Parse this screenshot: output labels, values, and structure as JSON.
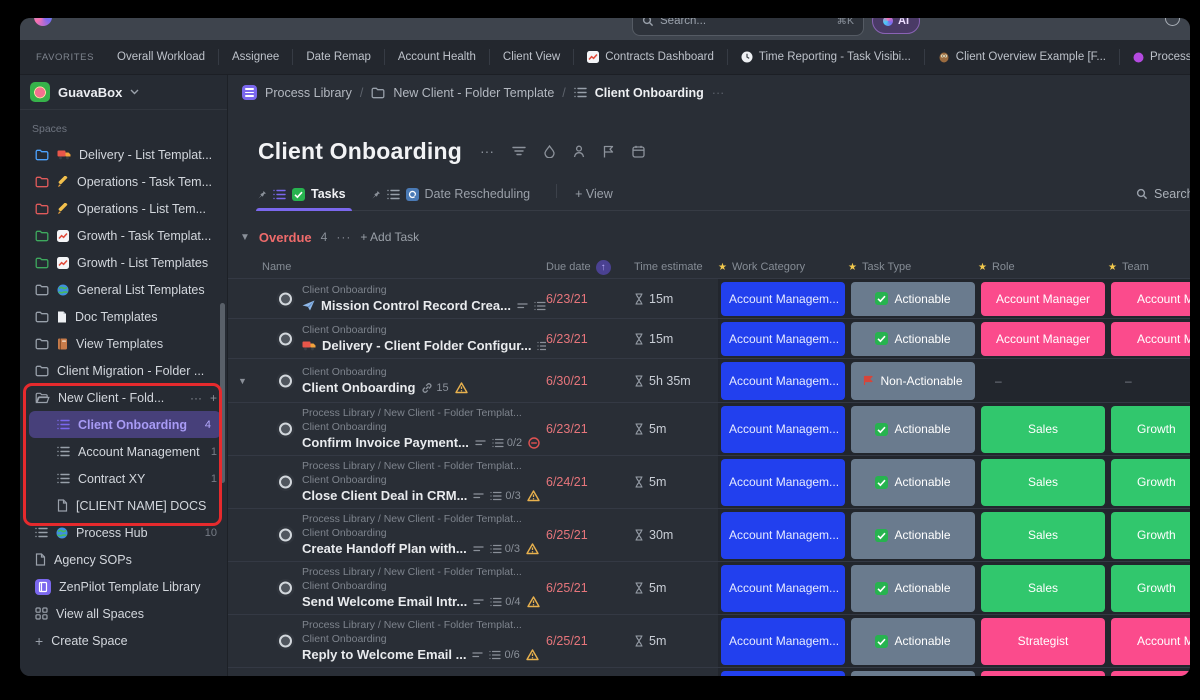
{
  "topbar": {
    "search_placeholder": "Search...",
    "search_shortcut": "⌘K",
    "ai_label": "AI"
  },
  "favorites": {
    "section_label": "FAVORITES",
    "items": [
      {
        "label": "Overall Workload"
      },
      {
        "label": "Assignee"
      },
      {
        "label": "Date Remap"
      },
      {
        "label": "Account Health"
      },
      {
        "label": "Client View"
      },
      {
        "label": "Contracts Dashboard",
        "icon": "chart-icon"
      },
      {
        "label": "Time Reporting - Task Visibi...",
        "icon": "clock-icon"
      },
      {
        "label": "Client Overview Example [F...",
        "icon": "owl-icon"
      },
      {
        "label": "Process Library QA [in...",
        "icon": "purple-dot-icon"
      }
    ]
  },
  "sidebar": {
    "workspace_name": "GuavaBox",
    "spaces_label": "Spaces",
    "items": [
      {
        "type": "space",
        "label": "Delivery - List Templat...",
        "folder_color": "#4da3ff",
        "emoji": "truck-icon"
      },
      {
        "type": "space",
        "label": "Operations - Task Tem...",
        "folder_color": "#e05b5b",
        "emoji": "pencil-icon"
      },
      {
        "type": "space",
        "label": "Operations - List Tem...",
        "folder_color": "#e05b5b",
        "emoji": "pencil-icon"
      },
      {
        "type": "space",
        "label": "Growth - Task Templat...",
        "folder_color": "#3ea95e",
        "emoji": "chart-icon"
      },
      {
        "type": "space",
        "label": "Growth - List Templates",
        "folder_color": "#3ea95e",
        "emoji": "chart-icon"
      },
      {
        "type": "space",
        "label": "General List Templates",
        "folder_color": "#98a0aa",
        "emoji": "globe-icon"
      },
      {
        "type": "space",
        "label": "Doc Templates",
        "folder_color": "#98a0aa",
        "emoji": "page-icon"
      },
      {
        "type": "space",
        "label": "View Templates",
        "folder_color": "#98a0aa",
        "emoji": "notebook-icon"
      },
      {
        "type": "space",
        "label": "Client Migration - Folder ...",
        "folder_color": "#98a0aa"
      },
      {
        "type": "folder-open",
        "label": "New Client - Fold...",
        "actions": [
          "···",
          "+"
        ]
      },
      {
        "type": "list",
        "label": "Client Onboarding",
        "count": "4",
        "selected": true,
        "child": true
      },
      {
        "type": "list",
        "label": "Account Management",
        "count": "1",
        "child": true
      },
      {
        "type": "list",
        "label": "Contract XY",
        "count": "1",
        "child": true
      },
      {
        "type": "doc",
        "label": "[CLIENT NAME] DOCS",
        "child": true
      },
      {
        "type": "list",
        "label": "Process Hub",
        "count": "10",
        "emoji": "globe-icon"
      },
      {
        "type": "doc",
        "label": "Agency SOPs"
      },
      {
        "type": "applib",
        "label": "ZenPilot Template Library"
      },
      {
        "type": "grid",
        "label": "View all Spaces"
      },
      {
        "type": "plus",
        "label": "Create Space"
      }
    ]
  },
  "breadcrumb": {
    "items": [
      "Process Library",
      "New Client - Folder Template",
      "Client Onboarding"
    ],
    "more": "···"
  },
  "page": {
    "title": "Client Onboarding",
    "title_more": "···",
    "tabs": [
      {
        "label": "Tasks"
      },
      {
        "label": "Date Rescheduling"
      }
    ],
    "add_view_label": "+ View",
    "search_label": "Search..."
  },
  "group": {
    "name": "Overdue",
    "count": "4",
    "more": "···",
    "add_task_label": "+ Add Task"
  },
  "table": {
    "columns": [
      "Name",
      "Due date",
      "Time estimate",
      "Work Category",
      "Task Type",
      "Role",
      "Team"
    ],
    "rows": [
      {
        "size": "sm",
        "context": [
          "Client Onboarding"
        ],
        "emoji": "plane-icon",
        "name": "Mission Control Record Crea...",
        "meta": [
          {
            "icon": "desc-icon"
          },
          {
            "icon": "checklist-icon",
            "text": "0/11"
          }
        ],
        "due": "6/23/21",
        "estimate": "15m",
        "chips": {
          "work_category": {
            "text": "Account Managem...",
            "color": "blue"
          },
          "task_type": {
            "text": "Actionable",
            "color": "slate",
            "icon": "check-green-icon"
          },
          "role": {
            "text": "Account Manager",
            "color": "pink"
          },
          "team": {
            "text": "Account Man",
            "color": "pink"
          }
        }
      },
      {
        "size": "sm",
        "context": [
          "Client Onboarding"
        ],
        "emoji": "truck-icon",
        "name": "Delivery - Client Folder Configur...",
        "meta": [
          {
            "icon": "checklist-icon",
            "text": "0/4"
          }
        ],
        "due": "6/23/21",
        "estimate": "15m",
        "chips": {
          "work_category": {
            "text": "Account Managem...",
            "color": "blue"
          },
          "task_type": {
            "text": "Actionable",
            "color": "slate",
            "icon": "check-green-icon"
          },
          "role": {
            "text": "Account Manager",
            "color": "pink"
          },
          "team": {
            "text": "Account Man",
            "color": "pink"
          }
        }
      },
      {
        "size": "m",
        "caret": true,
        "context": [
          "Client Onboarding"
        ],
        "name": "Client Onboarding",
        "meta": [
          {
            "icon": "link-icon",
            "text": "15"
          },
          {
            "icon": "warn-icon"
          }
        ],
        "due": "6/30/21",
        "estimate": "5h 35m",
        "chips": {
          "work_category": {
            "text": "Account Managem...",
            "color": "blue"
          },
          "task_type": {
            "text": "Non-Actionable",
            "color": "slate",
            "icon": "flag-red-icon"
          },
          "role": {
            "text": "–",
            "color": "none"
          },
          "team": {
            "text": "–",
            "color": "none"
          }
        }
      },
      {
        "size": "lg",
        "context": [
          "Process Library  /  New Client - Folder Templat...",
          "Client Onboarding"
        ],
        "name": "Confirm Invoice Payment...",
        "meta": [
          {
            "icon": "desc-icon"
          },
          {
            "icon": "checklist-icon",
            "text": "0/2"
          },
          {
            "icon": "blocked-icon"
          }
        ],
        "due": "6/23/21",
        "estimate": "5m",
        "chips": {
          "work_category": {
            "text": "Account Managem...",
            "color": "blue"
          },
          "task_type": {
            "text": "Actionable",
            "color": "slate",
            "icon": "check-green-icon"
          },
          "role": {
            "text": "Sales",
            "color": "green"
          },
          "team": {
            "text": "Growth",
            "color": "green"
          }
        }
      },
      {
        "size": "lg",
        "context": [
          "Process Library  /  New Client - Folder Templat...",
          "Client Onboarding"
        ],
        "name": "Close Client Deal in CRM...",
        "meta": [
          {
            "icon": "desc-icon"
          },
          {
            "icon": "checklist-icon",
            "text": "0/3"
          },
          {
            "icon": "warn-icon"
          }
        ],
        "due": "6/24/21",
        "estimate": "5m",
        "chips": {
          "work_category": {
            "text": "Account Managem...",
            "color": "blue"
          },
          "task_type": {
            "text": "Actionable",
            "color": "slate",
            "icon": "check-green-icon"
          },
          "role": {
            "text": "Sales",
            "color": "green"
          },
          "team": {
            "text": "Growth",
            "color": "green"
          }
        }
      },
      {
        "size": "lg",
        "context": [
          "Process Library  /  New Client - Folder Templat...",
          "Client Onboarding"
        ],
        "name": "Create Handoff Plan with...",
        "meta": [
          {
            "icon": "desc-icon"
          },
          {
            "icon": "checklist-icon",
            "text": "0/3"
          },
          {
            "icon": "warn-icon"
          }
        ],
        "due": "6/25/21",
        "estimate": "30m",
        "chips": {
          "work_category": {
            "text": "Account Managem...",
            "color": "blue"
          },
          "task_type": {
            "text": "Actionable",
            "color": "slate",
            "icon": "check-green-icon"
          },
          "role": {
            "text": "Sales",
            "color": "green"
          },
          "team": {
            "text": "Growth",
            "color": "green"
          }
        }
      },
      {
        "size": "lg",
        "context": [
          "Process Library  /  New Client - Folder Templat...",
          "Client Onboarding"
        ],
        "name": "Send Welcome Email Intr...",
        "meta": [
          {
            "icon": "desc-icon"
          },
          {
            "icon": "checklist-icon",
            "text": "0/4"
          },
          {
            "icon": "warn-icon"
          }
        ],
        "due": "6/25/21",
        "estimate": "5m",
        "chips": {
          "work_category": {
            "text": "Account Managem...",
            "color": "blue"
          },
          "task_type": {
            "text": "Actionable",
            "color": "slate",
            "icon": "check-green-icon"
          },
          "role": {
            "text": "Sales",
            "color": "green"
          },
          "team": {
            "text": "Growth",
            "color": "green"
          }
        }
      },
      {
        "size": "lg",
        "context": [
          "Process Library  /  New Client - Folder Templat...",
          "Client Onboarding"
        ],
        "name": "Reply to Welcome Email ...",
        "meta": [
          {
            "icon": "desc-icon"
          },
          {
            "icon": "checklist-icon",
            "text": "0/6"
          },
          {
            "icon": "warn-icon"
          }
        ],
        "due": "6/25/21",
        "estimate": "5m",
        "chips": {
          "work_category": {
            "text": "Account Managem...",
            "color": "blue"
          },
          "task_type": {
            "text": "Actionable",
            "color": "slate",
            "icon": "check-green-icon"
          },
          "role": {
            "text": "Strategist",
            "color": "pink"
          },
          "team": {
            "text": "Account Man",
            "color": "pink"
          }
        }
      },
      {
        "size": "lg",
        "context": [
          "Process Library  /  New Client - Folder Templat...",
          "Client Onboarding"
        ],
        "name": "",
        "meta": [],
        "due": "",
        "estimate": "",
        "chips": {
          "work_category": {
            "text": "",
            "color": "blue"
          },
          "task_type": {
            "text": "",
            "color": "slate"
          },
          "role": {
            "text": "",
            "color": "pink"
          },
          "team": {
            "text": "",
            "color": "pink"
          }
        }
      }
    ]
  },
  "colors": {
    "accent_purple": "#7b68ee",
    "overdue_red": "#ef6b6b",
    "chip_blue": "#2240ee",
    "chip_slate": "#6a7b8e",
    "chip_pink": "#fb4b8c",
    "chip_green": "#31c76d",
    "annotation_red": "#e62a2d"
  }
}
